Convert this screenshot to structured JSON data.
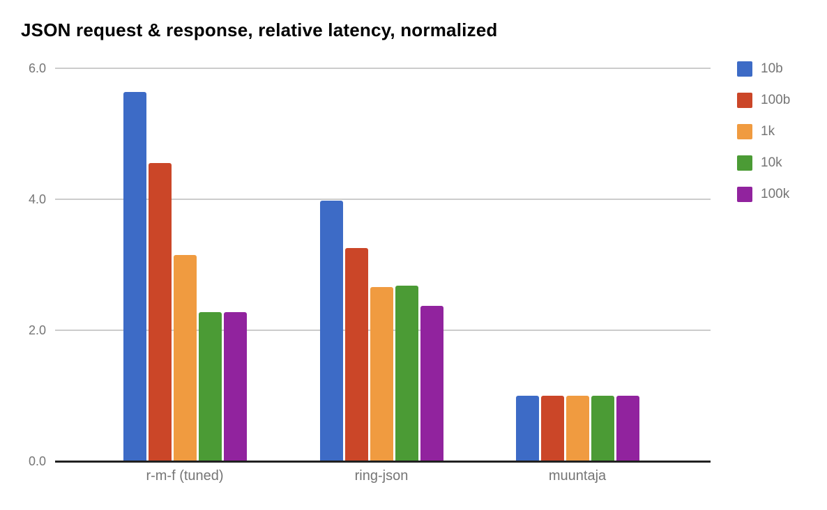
{
  "chart_data": {
    "type": "bar",
    "title": "JSON request & response, relative latency, normalized",
    "categories": [
      "r-m-f (tuned)",
      "ring-json",
      "muuntaja"
    ],
    "series": [
      {
        "name": "10b",
        "color": "#3d6bc6",
        "values": [
          5.64,
          3.98,
          1.0
        ]
      },
      {
        "name": "100b",
        "color": "#cb4628",
        "values": [
          4.55,
          3.26,
          1.0
        ]
      },
      {
        "name": "1k",
        "color": "#f09b40",
        "values": [
          3.15,
          2.66,
          1.0
        ]
      },
      {
        "name": "10k",
        "color": "#4b9b35",
        "values": [
          2.28,
          2.68,
          1.0
        ]
      },
      {
        "name": "100k",
        "color": "#91239e",
        "values": [
          2.28,
          2.37,
          1.0
        ]
      }
    ],
    "ylim": [
      0,
      6
    ],
    "yticks": [
      {
        "value": 0,
        "label": "0.0"
      },
      {
        "value": 2,
        "label": "2.0"
      },
      {
        "value": 4,
        "label": "4.0"
      },
      {
        "value": 6,
        "label": "6.0"
      }
    ],
    "grid": true,
    "legend_position": "right",
    "xlabel": "",
    "ylabel": ""
  },
  "colors": {
    "background": "#ffffff",
    "title_text": "#000000",
    "axis_label": "#757575",
    "gridline": "#cccccc",
    "baseline": "#212121"
  }
}
